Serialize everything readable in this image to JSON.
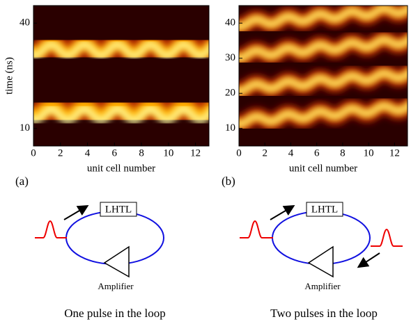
{
  "chart_data": [
    {
      "type": "heatmap",
      "panel_label": "(a)",
      "x_label": "unit cell number",
      "y_label": "time (ns)",
      "xlim": [
        0,
        13
      ],
      "xticks": [
        0,
        2,
        4,
        6,
        8,
        10,
        12
      ],
      "ylim": [
        5,
        45
      ],
      "yticks": [
        10,
        40
      ]
    },
    {
      "type": "heatmap",
      "panel_label": "(b)",
      "x_label": "unit cell number",
      "xlim": [
        0,
        13
      ],
      "xticks": [
        0,
        2,
        4,
        6,
        8,
        10,
        12
      ],
      "ylim": [
        5,
        45
      ],
      "yticks": [
        10,
        20,
        30,
        40
      ]
    }
  ],
  "diagrams": [
    {
      "component": "LHTL",
      "amplifier": "Amplifier",
      "caption": "One pulse in the loop"
    },
    {
      "component": "LHTL",
      "amplifier": "Amplifier",
      "caption": "Two pulses in the loop"
    }
  ]
}
